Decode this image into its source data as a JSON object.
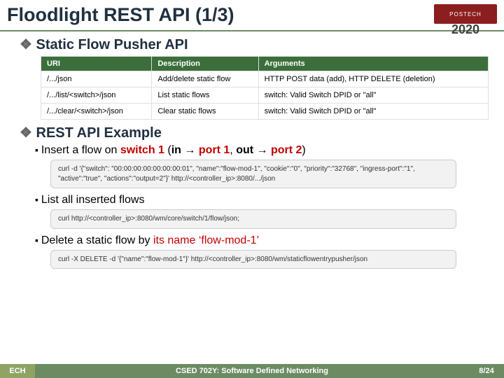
{
  "title": "Floodlight REST API (1/3)",
  "logo": {
    "brand": "POSTECH",
    "year": "2020"
  },
  "section1": {
    "heading": "Static Flow Pusher API",
    "table": {
      "columns": [
        "URI",
        "Description",
        "Arguments"
      ],
      "rows": [
        [
          "/.../json",
          "Add/delete static flow",
          "HTTP POST data (add), HTTP DELETE (deletion)"
        ],
        [
          "/.../list/<switch>/json",
          "List static flows",
          "switch: Valid Switch DPID or \"all\""
        ],
        [
          "/.../clear/<switch>/json",
          "Clear static flows",
          "switch: Valid Switch DPID or \"all\""
        ]
      ]
    }
  },
  "section2": {
    "heading": "REST API Example",
    "item1": {
      "prefix": "Insert a flow on ",
      "switch": "switch 1",
      "mid1": " (",
      "in": "in",
      "arrow1": " → ",
      "port1": "port 1",
      "mid2": ", ",
      "out": "out",
      "arrow2": " → ",
      "port2": "port 2",
      "suffix": ")",
      "code": "curl -d '{\"switch\": \"00:00:00:00:00:00:00:01\", \"name\":\"flow-mod-1\", \"cookie\":\"0\", \"priority\":\"32768\", \"ingress-port\":\"1\", \"active\":\"true\", \"actions\":\"output=2\"}' http://<controller_ip>:8080/.../json"
    },
    "item2": {
      "label": "List all inserted flows",
      "code": "curl http://<controller_ip>:8080/wm/core/switch/1/flow/json;"
    },
    "item3": {
      "prefix": "Delete a static flow by ",
      "highlight": "its name ‘flow-mod-1’",
      "code": "curl -X DELETE -d '{\"name\":\"flow-mod-1\"}' http://<controller_ip>:8080/wm/staticflowentrypusher/json"
    }
  },
  "footer": {
    "left": "ECH",
    "mid": "CSED 702Y: Software Defined Networking",
    "right": "8/24"
  },
  "colors": {
    "table_header_bg": "#3b6e3b",
    "accent": "#6b8c63",
    "brand_bg": "#8b1e1e",
    "highlight_text": "#c00000"
  }
}
